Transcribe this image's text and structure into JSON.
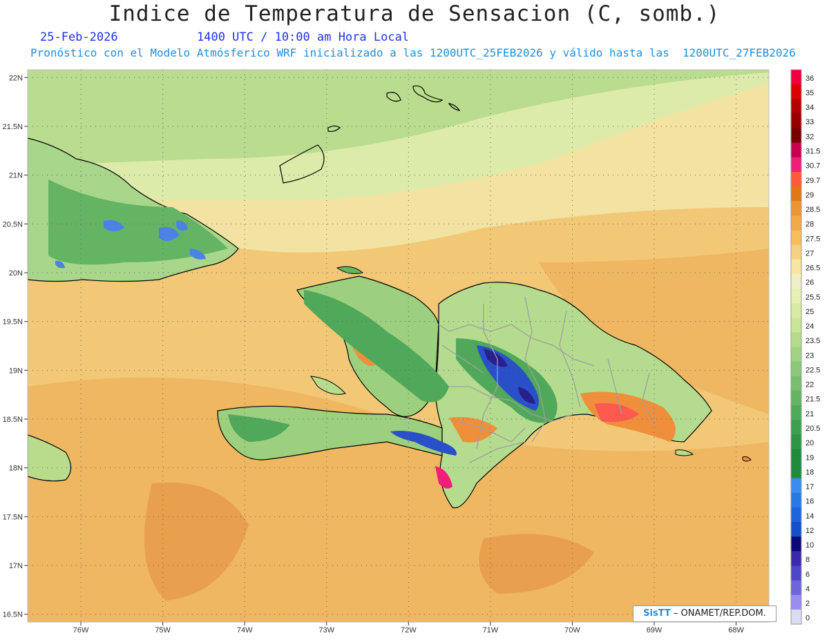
{
  "header": {
    "title": "Indice de Temperatura de Sensacion (C, somb.)",
    "date": "25-Feb-2026",
    "time": "1400 UTC / 10:00 am Hora Local",
    "model_line": "Pronóstico con el Modelo Atmósferico WRF inicializado a las 1200UTC_25FEB2026 y válido hasta las  1200UTC_27FEB2026"
  },
  "axes": {
    "lat_labels": [
      "22N",
      "21.5N",
      "21N",
      "20.5N",
      "20N",
      "19.5N",
      "19N",
      "18.5N",
      "18N",
      "17.5N",
      "17N",
      "16.5N"
    ],
    "lon_labels": [
      "76W",
      "75W",
      "74W",
      "73W",
      "72W",
      "71W",
      "70W",
      "69W",
      "68W"
    ],
    "lat_values": [
      22,
      21.5,
      21,
      20.5,
      20,
      19.5,
      19,
      18.5,
      18,
      17.5,
      17,
      16.5
    ],
    "lon_values": [
      -76,
      -75,
      -74,
      -73,
      -72,
      -71,
      -70,
      -69,
      -68
    ],
    "lat_range": [
      16.42,
      22.08
    ],
    "lon_range": [
      -76.65,
      -67.6
    ]
  },
  "colorbar": {
    "labels": [
      "36",
      "35",
      "34",
      "33",
      "32",
      "31.5",
      "30.7",
      "29.7",
      "29",
      "28.5",
      "28",
      "27.5",
      "27",
      "26.5",
      "26",
      "25.5",
      "25",
      "24",
      "23.5",
      "23",
      "22.5",
      "22",
      "21.5",
      "21",
      "20.5",
      "20",
      "19",
      "18",
      "17",
      "16",
      "14",
      "12",
      "10",
      "8",
      "6",
      "4",
      "2",
      "0"
    ],
    "colors": [
      "#f0003c",
      "#dc0000",
      "#b40000",
      "#960000",
      "#780000",
      "#c80050",
      "#f01e78",
      "#ff5a3c",
      "#e17814",
      "#eb9632",
      "#f0aa46",
      "#f5be5a",
      "#f5d282",
      "#f5e6a0",
      "#f0f0c8",
      "#e6f0b4",
      "#d7eba5",
      "#c8e696",
      "#b4dc8c",
      "#a0d282",
      "#8cc878",
      "#78be6e",
      "#64b464",
      "#50aa5a",
      "#3ca050",
      "#2d9646",
      "#1e8c3c",
      "#1e8c3c",
      "#3c8cf0",
      "#2878e6",
      "#1e64dc",
      "#1450c8",
      "#0a0a78",
      "#3c28aa",
      "#5046c8",
      "#6e64dc",
      "#9b8cf0",
      "#dcdcf0"
    ]
  },
  "credit": {
    "brand": "SisTT",
    "text": "ONAMET/REP.DOM."
  },
  "colors": {
    "title": "#222222",
    "date_time": "#1e32e6",
    "model_line": "#1f8fe0",
    "coast": "#000000",
    "province_border": "#a0a0a0",
    "grid": "#555555"
  }
}
